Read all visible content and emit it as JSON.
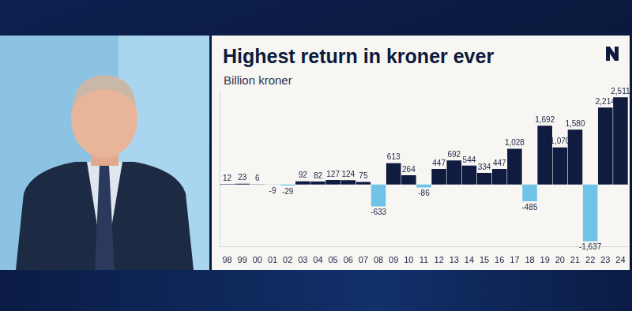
{
  "chart_data": {
    "type": "bar",
    "title": "Highest return in kroner ever",
    "subtitle": "Billion kroner",
    "categories": [
      "98",
      "99",
      "00",
      "01",
      "02",
      "03",
      "04",
      "05",
      "06",
      "07",
      "08",
      "09",
      "10",
      "11",
      "12",
      "13",
      "14",
      "15",
      "16",
      "17",
      "18",
      "19",
      "20",
      "21",
      "22",
      "23",
      "24"
    ],
    "values": [
      12,
      23,
      6,
      -9,
      -29,
      92,
      82,
      127,
      124,
      75,
      -633,
      613,
      264,
      -86,
      447,
      692,
      544,
      334,
      447,
      1028,
      -485,
      1692,
      1070,
      1580,
      -1637,
      2214,
      2511
    ],
    "value_labels": [
      "12",
      "23",
      "6",
      "-9",
      "-29",
      "92",
      "82",
      "127",
      "124",
      "75",
      "-633",
      "613",
      "264",
      "-86",
      "447",
      "692",
      "544",
      "334",
      "447",
      "1,028",
      "-485",
      "1,692",
      "1,070",
      "1,580",
      "-1,637",
      "2,214",
      "2,511"
    ],
    "colors": [
      "#0f1b3f",
      "#0f1b3f",
      "#0f1b3f",
      "#6fc3e6",
      "#6fc3e6",
      "#0f1b3f",
      "#0f1b3f",
      "#0f1b3f",
      "#0f1b3f",
      "#0f1b3f",
      "#6fc3e6",
      "#0f1b3f",
      "#0f1b3f",
      "#6fc3e6",
      "#0f1b3f",
      "#0f1b3f",
      "#0f1b3f",
      "#0f1b3f",
      "#0f1b3f",
      "#0f1b3f",
      "#6fc3e6",
      "#0f1b3f",
      "#0f1b3f",
      "#0f1b3f",
      "#6fc3e6",
      "#0f1b3f",
      "#0f1b3f"
    ],
    "ylim": [
      -1800,
      2700
    ],
    "grid": false,
    "data_labels": true,
    "tick_labels": "x"
  }
}
